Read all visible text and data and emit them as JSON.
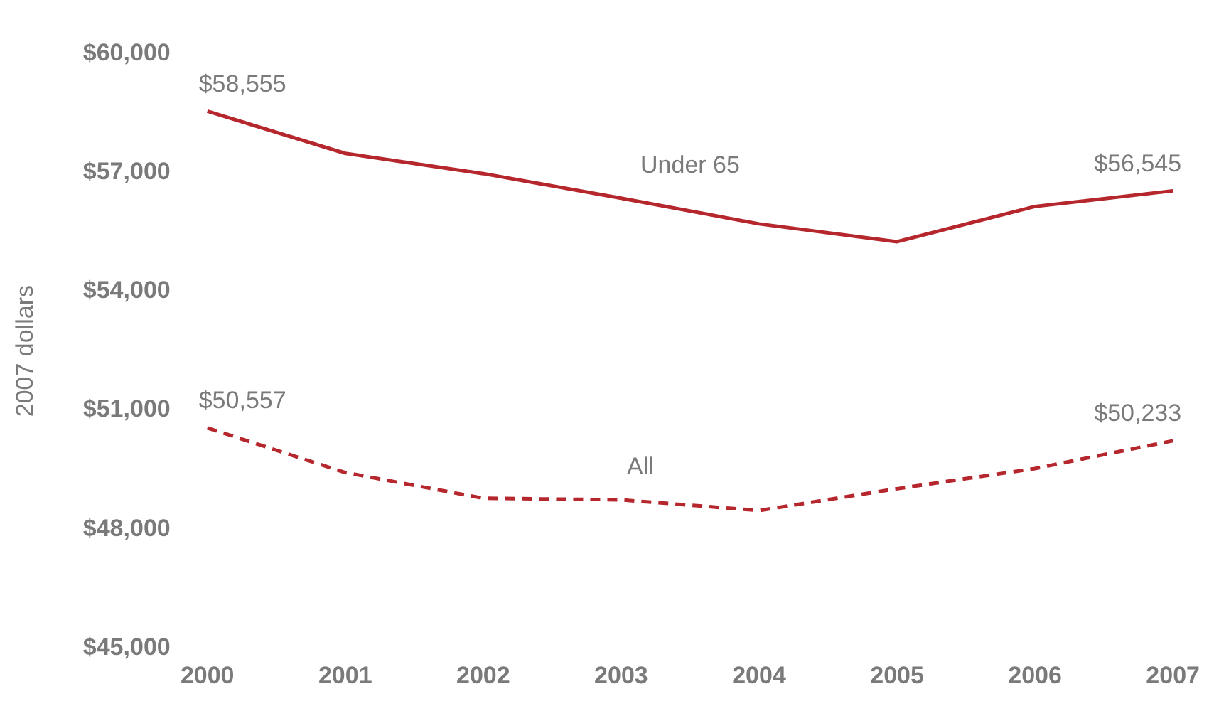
{
  "chart_data": {
    "type": "line",
    "ylabel": "2007 dollars",
    "categories": [
      "2000",
      "2001",
      "2002",
      "2003",
      "2004",
      "2005",
      "2006",
      "2007"
    ],
    "series": [
      {
        "name": "Under 65",
        "color": "#b5272d",
        "line_style": "solid",
        "values": [
          58555,
          57490,
          56980,
          56360,
          55710,
          55260,
          56150,
          56545
        ]
      },
      {
        "name": "All",
        "color": "#b5272d",
        "line_style": "dashed",
        "values": [
          50557,
          49430,
          48780,
          48740,
          48470,
          49020,
          49530,
          50233
        ]
      }
    ],
    "ylim": [
      45000,
      60000
    ],
    "yticks": [
      {
        "value": 45000,
        "label": "$45,000"
      },
      {
        "value": 48000,
        "label": "$48,000"
      },
      {
        "value": 51000,
        "label": "$51,000"
      },
      {
        "value": 54000,
        "label": "$54,000"
      },
      {
        "value": 57000,
        "label": "$57,000"
      },
      {
        "value": 60000,
        "label": "$60,000"
      }
    ],
    "annotations": [
      {
        "text": "$58,555",
        "x": "2000",
        "y": 58555
      },
      {
        "text": "$56,545",
        "x": "2007",
        "y": 56545
      },
      {
        "text": "$50,557",
        "x": "2000",
        "y": 50557
      },
      {
        "text": "$50,233",
        "x": "2007",
        "y": 50233
      }
    ],
    "marker": "none",
    "grid": false,
    "legend": false
  }
}
